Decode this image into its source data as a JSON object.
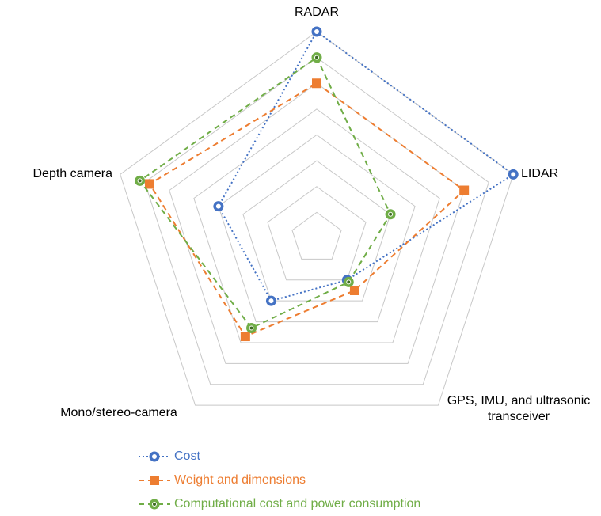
{
  "chart_data": {
    "type": "radar",
    "categories": [
      "RADAR",
      "LIDAR",
      "GPS, IMU, and ultrasonic transceiver",
      "Mono/stereo-camera",
      "Depth camera"
    ],
    "series": [
      {
        "name": "Cost",
        "color": "#4472c4",
        "marker": "circle",
        "line": "dotted",
        "values": [
          8,
          8,
          2,
          3,
          4
        ]
      },
      {
        "name": "Weight and dimensions",
        "color": "#ed7d31",
        "marker": "square",
        "line": "dashed",
        "values": [
          6,
          6,
          2.5,
          4.7,
          6.8
        ]
      },
      {
        "name": "Computational cost and power consumption",
        "color": "#70ad47",
        "marker": "circle",
        "line": "dashed",
        "values": [
          7,
          3,
          2.1,
          4.3,
          7.2
        ]
      }
    ],
    "ylim": [
      0,
      8
    ],
    "yticks": [
      1,
      2,
      3,
      4,
      5,
      6,
      7,
      8
    ],
    "grid": true,
    "legend": "bottom"
  }
}
